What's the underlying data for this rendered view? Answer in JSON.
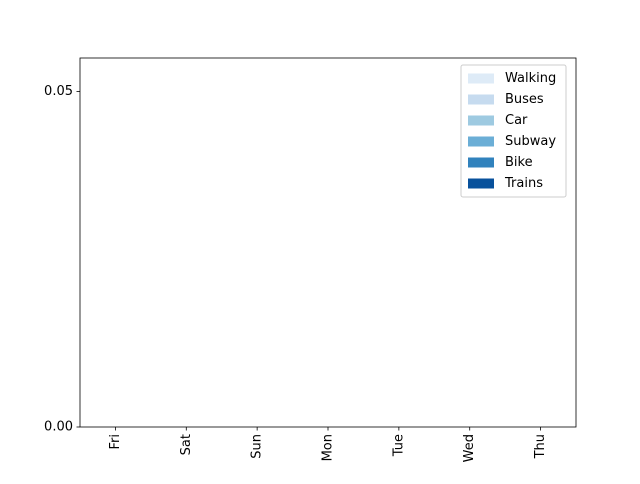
{
  "chart_data": {
    "type": "bar",
    "stacked": true,
    "title": "",
    "xlabel": "",
    "ylabel": "",
    "categories": [
      "Fri",
      "Sat",
      "Sun",
      "Mon",
      "Tue",
      "Wed",
      "Thu"
    ],
    "series": [
      {
        "name": "Walking",
        "color": "#deebf7",
        "values": [
          0,
          0,
          0,
          0,
          0,
          0,
          0
        ]
      },
      {
        "name": "Buses",
        "color": "#c6dbef",
        "values": [
          0,
          0,
          0,
          0,
          0,
          0,
          0
        ]
      },
      {
        "name": "Car",
        "color": "#9ecae1",
        "values": [
          0,
          0,
          0,
          0,
          0,
          0,
          0
        ]
      },
      {
        "name": "Subway",
        "color": "#6baed6",
        "values": [
          0,
          0,
          0,
          0,
          0,
          0,
          0
        ]
      },
      {
        "name": "Bike",
        "color": "#3182bd",
        "values": [
          0,
          0,
          0,
          0,
          0,
          0,
          0
        ]
      },
      {
        "name": "Trains",
        "color": "#08519c",
        "values": [
          0,
          0,
          0,
          0,
          0,
          0,
          0
        ]
      }
    ],
    "ylim": [
      0,
      0.055
    ],
    "yticks": [
      0,
      0.05
    ],
    "ytick_labels": [
      "0.00",
      "0.05"
    ],
    "xtick_rotation": 90,
    "grid": false,
    "legend_position": "top-right"
  }
}
